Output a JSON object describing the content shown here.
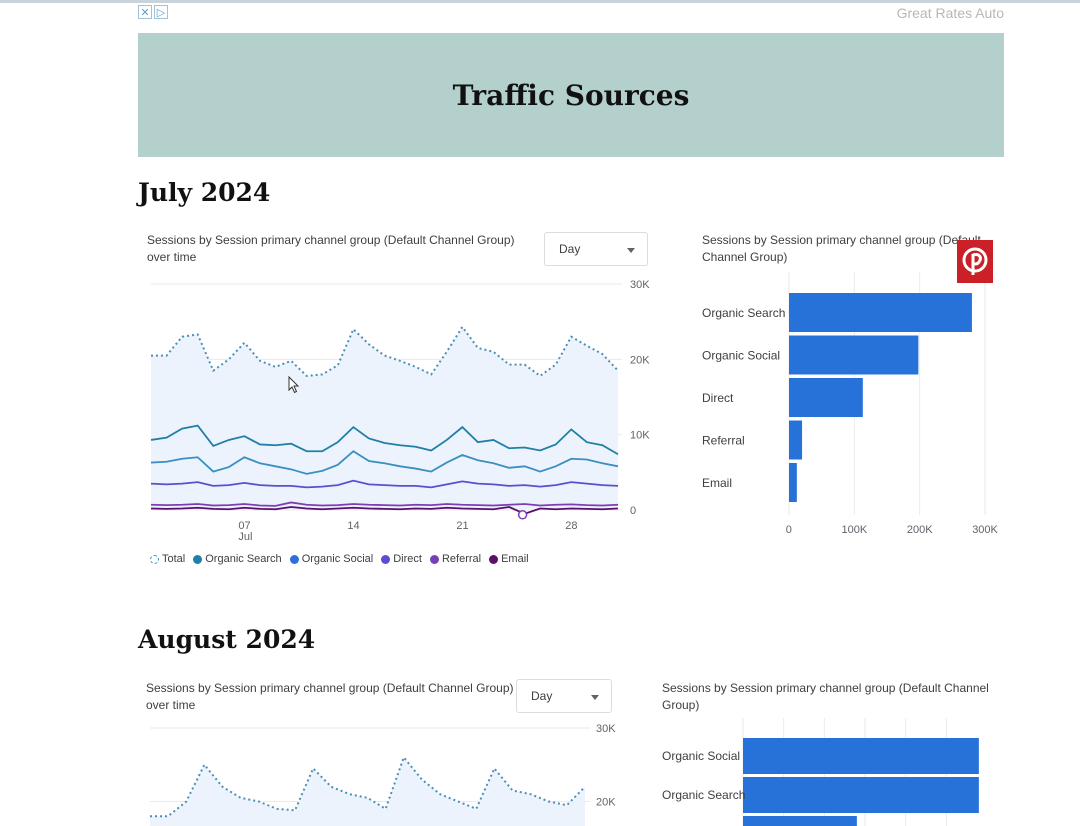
{
  "ad": {
    "close_glyph": "✕",
    "adchoices_glyph": "▷",
    "text": "Great Rates Auto"
  },
  "banner": {
    "title": "Traffic Sources"
  },
  "sections": [
    {
      "month": "July 2024",
      "line_title_1": "Sessions by Session primary channel group (Default Channel Group)",
      "line_title_2": "over time",
      "dropdown": "Day",
      "bar_title_1": "Sessions by Session primary channel group (Default",
      "bar_title_2": "Channel Group)"
    },
    {
      "month": "August 2024",
      "line_title_1": "Sessions by Session primary channel group (Default Channel Group)",
      "line_title_2": "over time",
      "dropdown": "Day",
      "bar_title_1": "Sessions by Session primary channel group (Default Channel",
      "bar_title_2": "Group)"
    }
  ],
  "legend": [
    {
      "label": "Total",
      "color": "#9ec3de",
      "hollow": true
    },
    {
      "label": "Organic Search",
      "color": "#1f7fa5"
    },
    {
      "label": "Organic Social",
      "color": "#2f6fd6"
    },
    {
      "label": "Direct",
      "color": "#5a4fcf"
    },
    {
      "label": "Referral",
      "color": "#7b3fb5"
    },
    {
      "label": "Email",
      "color": "#5b0f6b"
    }
  ],
  "chart_data": [
    {
      "type": "line",
      "title": "Sessions by Session primary channel group (Default Channel Group) over time",
      "x_tick_labels": [
        "07",
        "14",
        "21",
        "28"
      ],
      "x_sub_label": "Jul",
      "y_ticks": [
        "0",
        "10K",
        "20K",
        "30K"
      ],
      "ylim": [
        0,
        30000
      ],
      "x": [
        1,
        2,
        3,
        4,
        5,
        6,
        7,
        8,
        9,
        10,
        11,
        12,
        13,
        14,
        15,
        16,
        17,
        18,
        19,
        20,
        21,
        22,
        23,
        24,
        25,
        26,
        27,
        28,
        29,
        30,
        31
      ],
      "series": [
        {
          "name": "Total",
          "color": "#4b8fb4",
          "dashed": true,
          "values": [
            20500,
            20500,
            23000,
            23300,
            18500,
            20000,
            22200,
            19800,
            19000,
            19800,
            17800,
            18000,
            19200,
            24000,
            22000,
            20500,
            19800,
            19000,
            18000,
            21000,
            24300,
            21500,
            21000,
            19300,
            19300,
            17800,
            19300,
            23000,
            21800,
            20700,
            18500
          ]
        },
        {
          "name": "Organic Search",
          "color": "#1f7fa5",
          "values": [
            9300,
            9600,
            10800,
            11200,
            8500,
            9300,
            9800,
            8700,
            8600,
            8800,
            7800,
            7800,
            9000,
            11000,
            9500,
            8900,
            8600,
            8400,
            7900,
            9300,
            11000,
            9000,
            9300,
            8200,
            8300,
            7900,
            8700,
            10700,
            9000,
            8600,
            7400
          ]
        },
        {
          "name": "Organic Social",
          "color": "#3a8fc0",
          "values": [
            6300,
            6400,
            6800,
            7000,
            5100,
            5700,
            7000,
            6200,
            5800,
            5400,
            4800,
            5200,
            6000,
            7800,
            6500,
            6200,
            5800,
            5500,
            5100,
            6300,
            7300,
            6600,
            6200,
            5600,
            5800,
            5100,
            5800,
            6800,
            6700,
            6200,
            5800
          ]
        },
        {
          "name": "Direct",
          "color": "#5a4fcf",
          "values": [
            3500,
            3400,
            3500,
            3700,
            3200,
            3300,
            3600,
            3300,
            3200,
            3200,
            3000,
            3100,
            3300,
            3900,
            3400,
            3300,
            3200,
            3200,
            3000,
            3400,
            3800,
            3500,
            3400,
            3200,
            3300,
            3100,
            3300,
            3700,
            3500,
            3300,
            3200
          ]
        },
        {
          "name": "Referral",
          "color": "#7b3fb5",
          "values": [
            700,
            650,
            700,
            800,
            600,
            650,
            800,
            600,
            550,
            1000,
            700,
            600,
            650,
            800,
            700,
            650,
            600,
            700,
            650,
            800,
            700,
            650,
            600,
            700,
            800,
            600,
            700,
            750,
            650,
            600,
            700
          ]
        },
        {
          "name": "Email",
          "color": "#5b0f6b",
          "values": [
            200,
            150,
            200,
            300,
            150,
            100,
            300,
            150,
            100,
            400,
            200,
            100,
            200,
            300,
            200,
            150,
            100,
            200,
            150,
            300,
            200,
            150,
            100,
            400,
            -500,
            200,
            100,
            200,
            150,
            100,
            200
          ]
        }
      ]
    },
    {
      "type": "bar",
      "orientation": "horizontal",
      "title": "Sessions by Session primary channel group (Default Channel Group)",
      "categories": [
        "Organic Search",
        "Organic Social",
        "Direct",
        "Referral",
        "Email"
      ],
      "values": [
        280000,
        198000,
        113000,
        20000,
        12000
      ],
      "xlim": [
        0,
        300000
      ],
      "x_ticks": [
        "0",
        "100K",
        "200K",
        "300K"
      ],
      "color": "#2672d9"
    },
    {
      "type": "line",
      "title": "Sessions by Session primary channel group (Default Channel Group) over time",
      "y_ticks": [
        "20K",
        "30K"
      ],
      "ylim": [
        10000,
        30000
      ],
      "series": [
        {
          "name": "Total",
          "color": "#4b8fb4",
          "dashed": true,
          "values": [
            18000,
            18000,
            20000,
            25000,
            22000,
            20500,
            20000,
            19000,
            18800,
            24500,
            22000,
            21000,
            20500,
            19000,
            26000,
            23000,
            21000,
            20000,
            19000,
            24500,
            21500,
            21000,
            20000,
            19500,
            22000
          ]
        }
      ]
    },
    {
      "type": "bar",
      "orientation": "horizontal",
      "title": "Sessions by Session primary channel group (Default Channel Group)",
      "categories": [
        "Organic Social",
        "Organic Search",
        ""
      ],
      "values": [
        290000,
        290000,
        140000
      ],
      "xlim": [
        0,
        300000
      ],
      "color": "#2672d9"
    }
  ]
}
